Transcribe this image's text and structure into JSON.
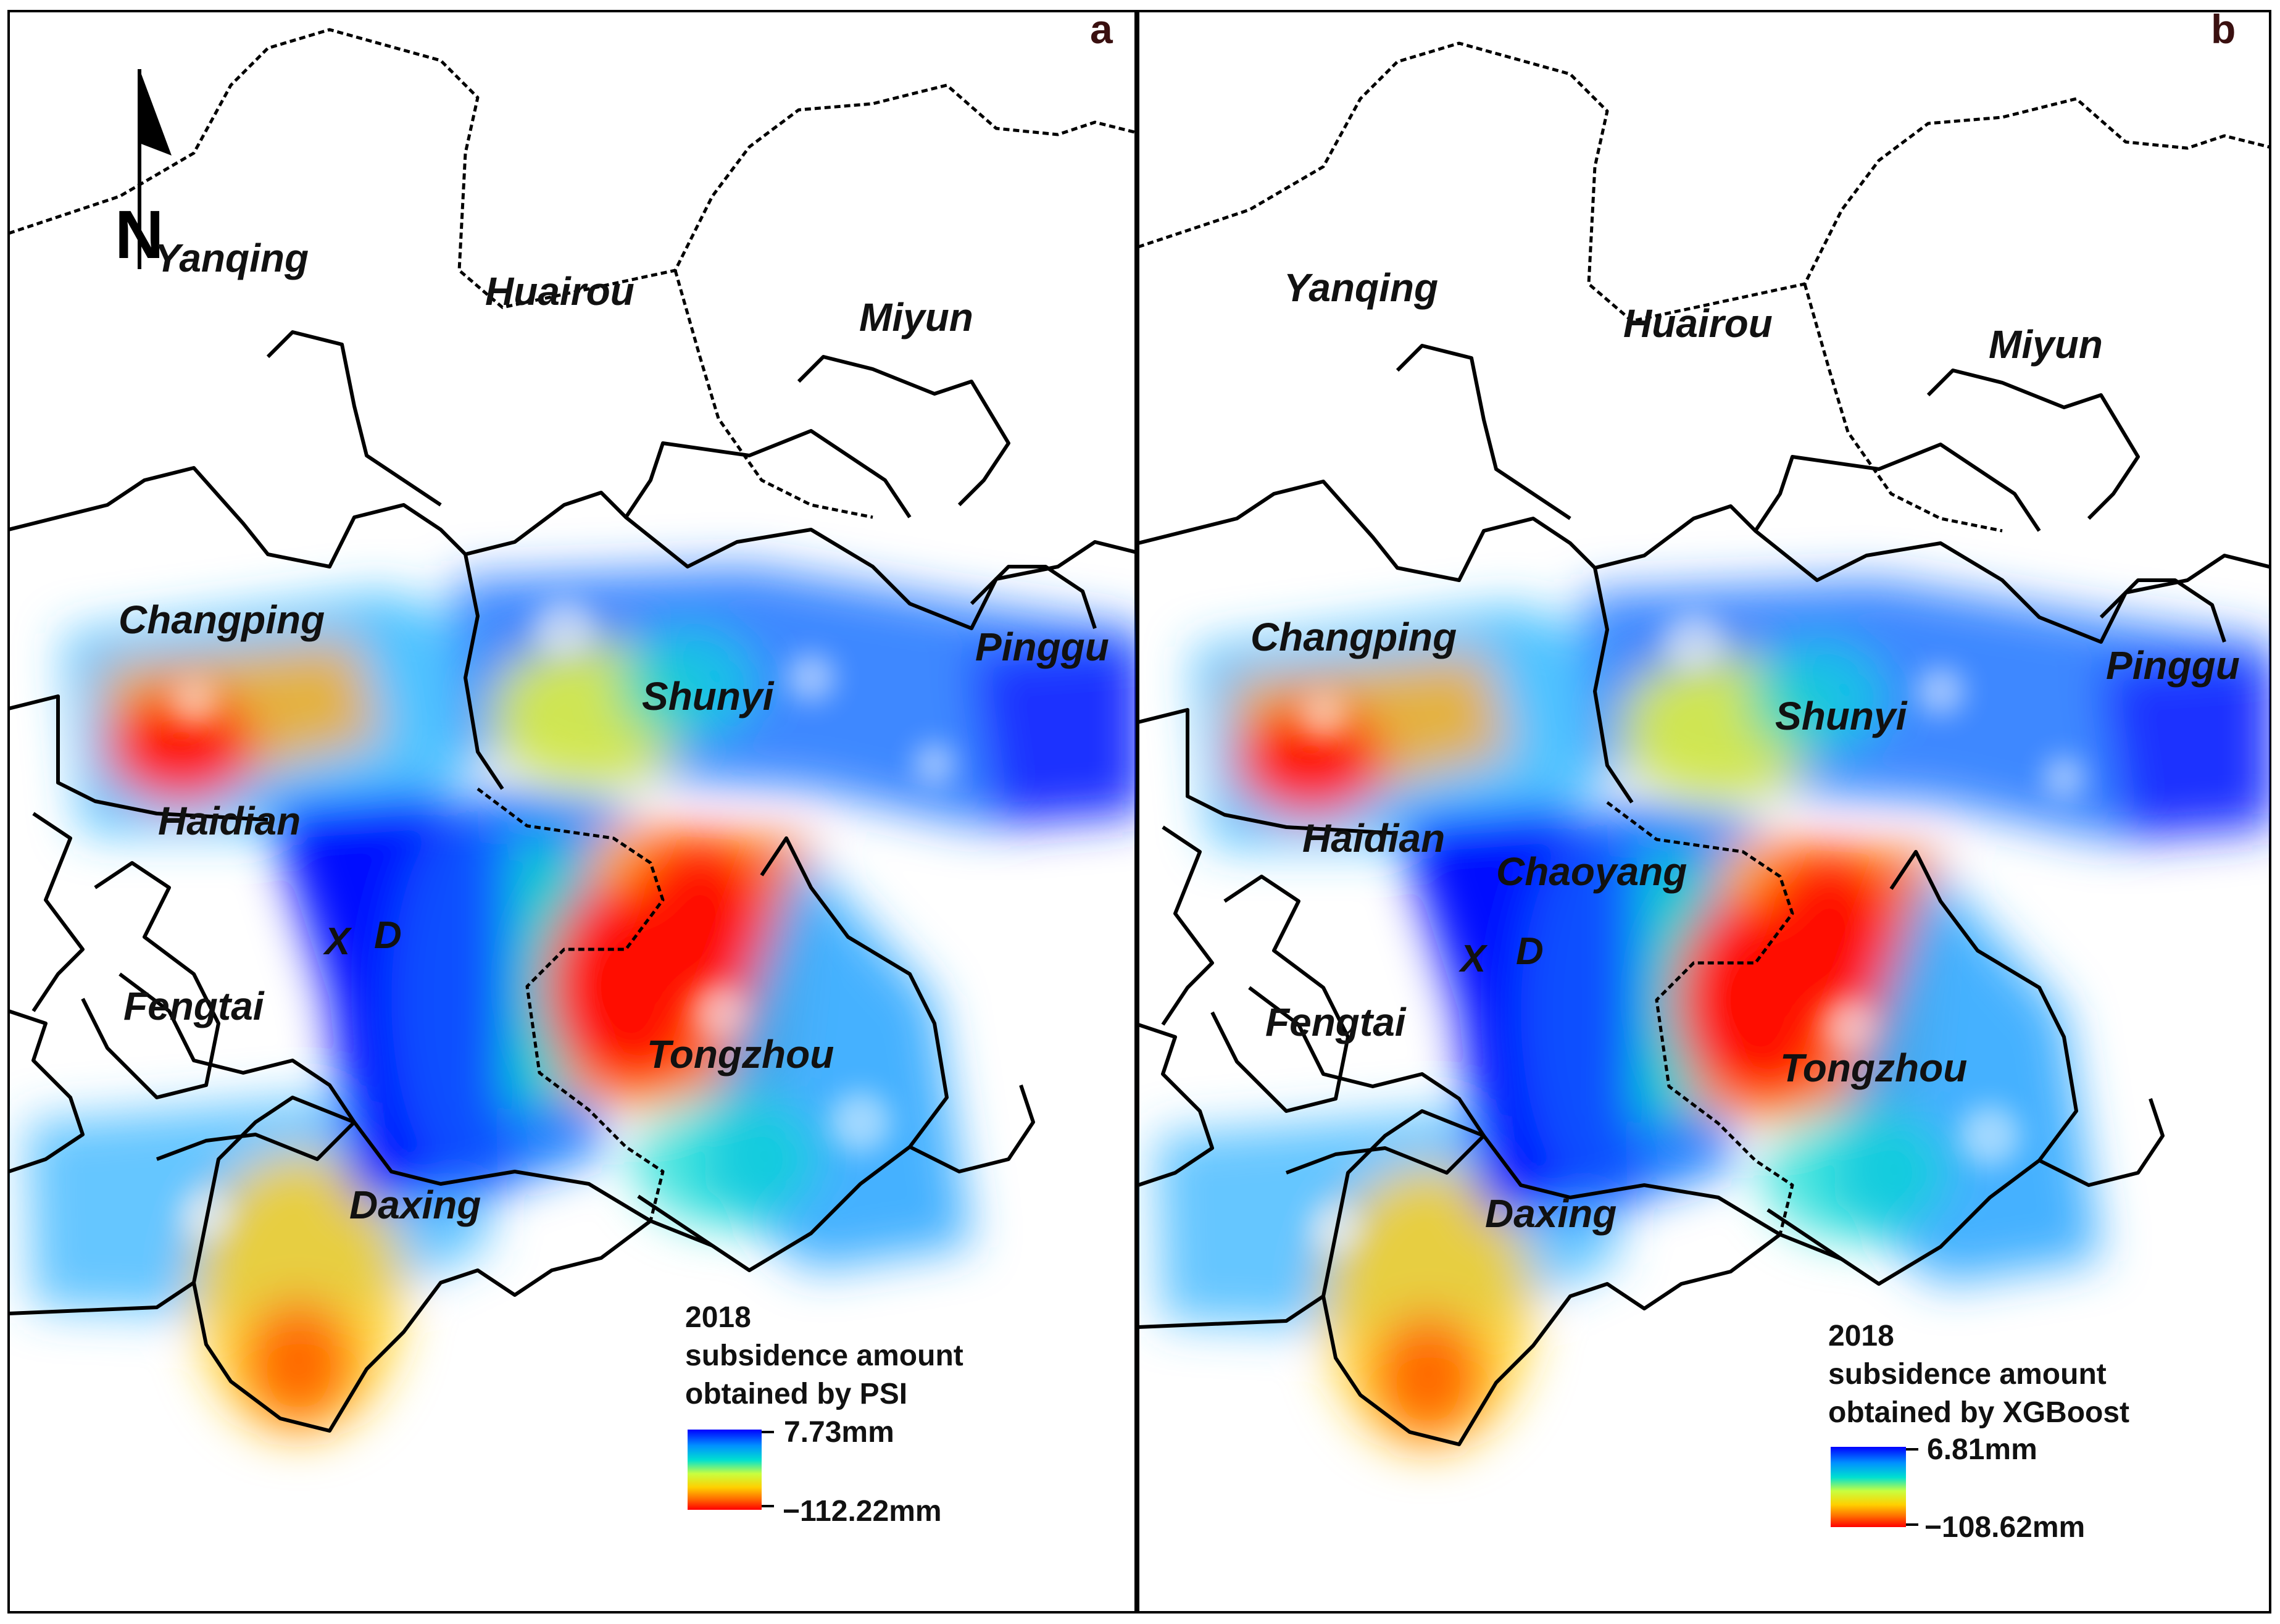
{
  "panels": [
    {
      "letter": "a",
      "districts": {
        "yanqing": "Yanqing",
        "huairou": "Huairou",
        "miyun": "Miyun",
        "changping": "Changping",
        "pinggu": "Pinggu",
        "shunyi": "Shunyi",
        "haidian": "Haidian",
        "chaoyang": "",
        "x": "X",
        "d": "D",
        "fengtai": "Fengtai",
        "tongzhou": "Tongzhou",
        "daxing": "Daxing"
      },
      "legend": {
        "title_line1": "2018",
        "title_line2": "subsidence amount",
        "title_line3": "obtained by PSI",
        "max": "7.73mm",
        "min": "−112.22mm"
      }
    },
    {
      "letter": "b",
      "districts": {
        "yanqing": "Yanqing",
        "huairou": "Huairou",
        "miyun": "Miyun",
        "changping": "Changping",
        "pinggu": "Pinggu",
        "shunyi": "Shunyi",
        "haidian": "Haidian",
        "chaoyang": "Chaoyang",
        "x": "X",
        "d": "D",
        "fengtai": "Fengtai",
        "tongzhou": "Tongzhou",
        "daxing": "Daxing"
      },
      "legend": {
        "title_line1": "2018",
        "title_line2": "subsidence amount",
        "title_line3": "obtained by XGBoost",
        "max": "6.81mm",
        "min": "−108.62mm"
      }
    }
  ],
  "north_arrow": {
    "label": "N",
    "icon": "north-arrow-icon"
  },
  "colorbar": {
    "stops": [
      "#0000ff",
      "#0090ff",
      "#00e0d0",
      "#c8ff40",
      "#ffd000",
      "#ff7000",
      "#ff0000"
    ]
  }
}
